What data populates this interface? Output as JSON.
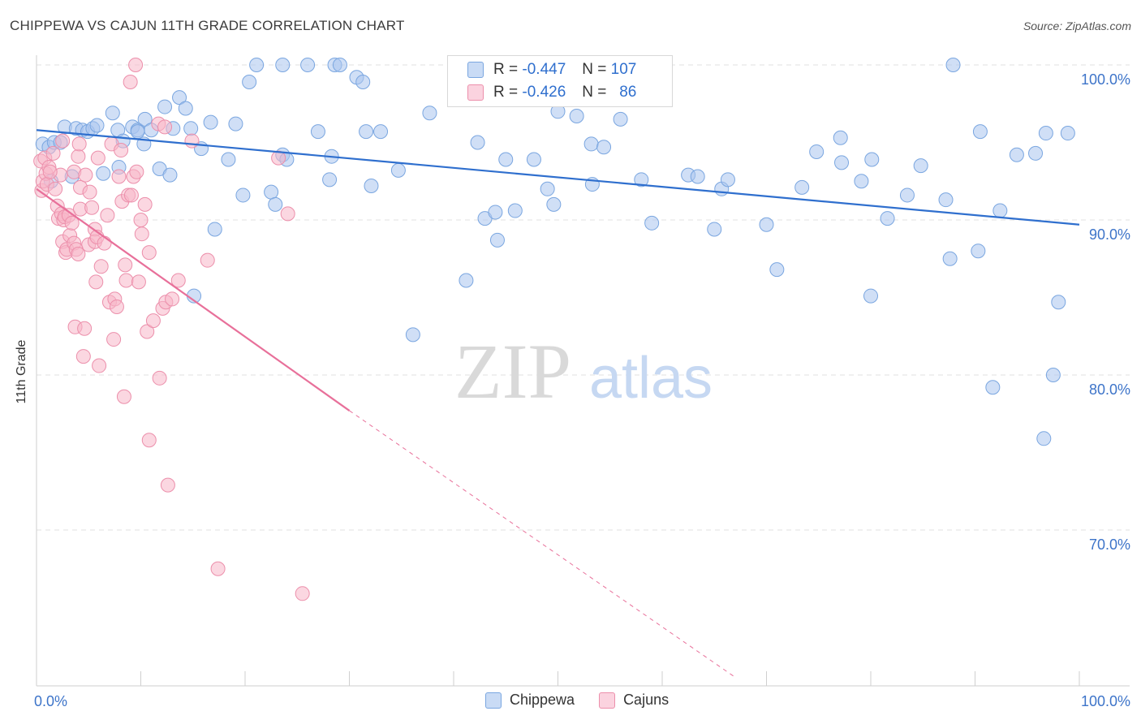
{
  "header": {
    "title": "CHIPPEWA VS CAJUN 11TH GRADE CORRELATION CHART",
    "source": "Source: ZipAtlas.com"
  },
  "legend": {
    "rows": [
      {
        "r_label": "R = ",
        "r_value": "-0.447",
        "n_label": "N = ",
        "n_value": "107",
        "color": "#a9c5ef"
      },
      {
        "r_label": "R = ",
        "r_value": "-0.426",
        "n_label": "N = ",
        "n_value": "86",
        "color": "#f7b6c9"
      }
    ],
    "bottom": [
      {
        "label": "Chippewa",
        "color": "#a9c5ef"
      },
      {
        "label": "Cajuns",
        "color": "#f7b6c9"
      }
    ]
  },
  "watermark": {
    "zip": "ZIP",
    "atlas": "atlas"
  },
  "chart_data": {
    "type": "scatter",
    "title": "CHIPPEWA VS CAJUN 11TH GRADE CORRELATION CHART",
    "xlabel": "",
    "ylabel": "11th Grade",
    "xlim": [
      0,
      100
    ],
    "ylim": [
      60.5,
      101.5
    ],
    "x_tick_labels": [
      "0.0%",
      "100.0%"
    ],
    "y_ticks": [
      70,
      80,
      90,
      100
    ],
    "y_tick_labels": [
      "70.0%",
      "80.0%",
      "90.0%",
      "100.0%"
    ],
    "grid": "horizontal dashed",
    "legend_position": "top-center",
    "series": [
      {
        "name": "Chippewa",
        "color": "#a9c5ef",
        "stroke": "#7aa6e0",
        "trend": {
          "x": [
            0,
            100
          ],
          "y": [
            95.8,
            89.7
          ],
          "color": "#2f6fce"
        },
        "points": [
          [
            0.6,
            94.9
          ],
          [
            1.2,
            94.7
          ],
          [
            1.7,
            95.0
          ],
          [
            2.3,
            95.0
          ],
          [
            2.7,
            96.0
          ],
          [
            3.4,
            92.8
          ],
          [
            3.8,
            95.9
          ],
          [
            4.4,
            95.8
          ],
          [
            4.9,
            95.7
          ],
          [
            5.4,
            95.9
          ],
          [
            5.8,
            96.1
          ],
          [
            6.4,
            93.0
          ],
          [
            7.3,
            96.9
          ],
          [
            7.9,
            93.4
          ],
          [
            7.8,
            95.8
          ],
          [
            8.3,
            95.1
          ],
          [
            9.2,
            96.0
          ],
          [
            9.7,
            95.8
          ],
          [
            10.3,
            94.9
          ],
          [
            10.4,
            96.5
          ],
          [
            11.0,
            95.8
          ],
          [
            11.8,
            93.3
          ],
          [
            12.3,
            97.3
          ],
          [
            12.8,
            92.9
          ],
          [
            13.1,
            95.9
          ],
          [
            13.7,
            97.9
          ],
          [
            14.3,
            97.2
          ],
          [
            14.8,
            95.9
          ],
          [
            15.1,
            85.1
          ],
          [
            15.8,
            94.6
          ],
          [
            16.7,
            96.3
          ],
          [
            17.1,
            89.4
          ],
          [
            18.4,
            93.9
          ],
          [
            19.1,
            96.2
          ],
          [
            19.8,
            91.6
          ],
          [
            20.4,
            98.9
          ],
          [
            21.1,
            100.0
          ],
          [
            22.5,
            91.8
          ],
          [
            22.9,
            91.0
          ],
          [
            23.6,
            94.2
          ],
          [
            23.6,
            100.0
          ],
          [
            24.0,
            93.9
          ],
          [
            26.0,
            100.0
          ],
          [
            27.0,
            95.7
          ],
          [
            28.1,
            92.6
          ],
          [
            28.3,
            94.1
          ],
          [
            28.6,
            100.0
          ],
          [
            29.1,
            100.0
          ],
          [
            30.7,
            99.2
          ],
          [
            31.3,
            98.9
          ],
          [
            31.6,
            95.7
          ],
          [
            32.1,
            92.2
          ],
          [
            33.0,
            95.7
          ],
          [
            34.7,
            93.2
          ],
          [
            36.1,
            82.6
          ],
          [
            37.7,
            96.9
          ],
          [
            41.2,
            86.1
          ],
          [
            42.3,
            95.0
          ],
          [
            43.0,
            90.1
          ],
          [
            44.0,
            90.5
          ],
          [
            44.2,
            88.7
          ],
          [
            45.0,
            93.9
          ],
          [
            45.9,
            90.6
          ],
          [
            47.7,
            93.9
          ],
          [
            49.0,
            92.0
          ],
          [
            49.6,
            91.0
          ],
          [
            50.0,
            97.0
          ],
          [
            51.8,
            96.7
          ],
          [
            53.2,
            94.9
          ],
          [
            53.3,
            92.3
          ],
          [
            54.4,
            94.7
          ],
          [
            56.0,
            96.5
          ],
          [
            58.0,
            92.6
          ],
          [
            59.0,
            89.8
          ],
          [
            62.5,
            92.9
          ],
          [
            63.4,
            92.8
          ],
          [
            65.0,
            89.4
          ],
          [
            65.7,
            92.0
          ],
          [
            66.3,
            92.6
          ],
          [
            70.0,
            89.7
          ],
          [
            71.0,
            86.8
          ],
          [
            73.4,
            92.1
          ],
          [
            74.8,
            94.4
          ],
          [
            77.1,
            95.3
          ],
          [
            77.2,
            93.7
          ],
          [
            79.1,
            92.5
          ],
          [
            80.0,
            85.1
          ],
          [
            80.1,
            93.9
          ],
          [
            81.6,
            90.1
          ],
          [
            83.5,
            91.6
          ],
          [
            84.8,
            93.5
          ],
          [
            87.2,
            91.3
          ],
          [
            87.6,
            87.5
          ],
          [
            87.9,
            100.0
          ],
          [
            90.3,
            88.0
          ],
          [
            90.5,
            95.7
          ],
          [
            91.7,
            79.2
          ],
          [
            92.4,
            90.6
          ],
          [
            94.0,
            94.2
          ],
          [
            95.8,
            94.3
          ],
          [
            96.6,
            75.9
          ],
          [
            96.8,
            95.6
          ],
          [
            97.5,
            80.0
          ],
          [
            98.0,
            84.7
          ],
          [
            98.9,
            95.6
          ],
          [
            1.4,
            92.5
          ],
          [
            9.7,
            95.7
          ]
        ]
      },
      {
        "name": "Cajuns",
        "color": "#f7b6c9",
        "stroke": "#ec8fab",
        "trend": {
          "x": [
            0,
            30.0,
            67.0
          ],
          "y": [
            92.0,
            77.7,
            60.5
          ],
          "color": "#e8709a"
        },
        "points": [
          [
            0.4,
            93.8
          ],
          [
            0.5,
            91.9
          ],
          [
            0.6,
            92.5
          ],
          [
            0.8,
            94.0
          ],
          [
            0.9,
            93.0
          ],
          [
            1.0,
            92.3
          ],
          [
            1.2,
            93.4
          ],
          [
            1.6,
            94.3
          ],
          [
            1.8,
            92.0
          ],
          [
            2.0,
            90.9
          ],
          [
            2.1,
            90.1
          ],
          [
            2.3,
            92.9
          ],
          [
            2.4,
            90.4
          ],
          [
            2.5,
            95.1
          ],
          [
            2.5,
            88.6
          ],
          [
            2.6,
            90.0
          ],
          [
            2.7,
            90.2
          ],
          [
            2.8,
            87.9
          ],
          [
            2.9,
            88.1
          ],
          [
            3.1,
            90.3
          ],
          [
            3.2,
            89.0
          ],
          [
            3.4,
            89.8
          ],
          [
            3.6,
            93.1
          ],
          [
            3.6,
            88.5
          ],
          [
            3.7,
            83.1
          ],
          [
            3.8,
            88.1
          ],
          [
            4.0,
            87.8
          ],
          [
            4.0,
            94.1
          ],
          [
            4.1,
            94.9
          ],
          [
            4.2,
            92.1
          ],
          [
            4.2,
            90.7
          ],
          [
            4.5,
            81.2
          ],
          [
            4.6,
            83.0
          ],
          [
            4.7,
            92.9
          ],
          [
            5.0,
            88.4
          ],
          [
            5.1,
            91.8
          ],
          [
            5.3,
            90.8
          ],
          [
            5.6,
            89.4
          ],
          [
            5.6,
            88.6
          ],
          [
            5.7,
            86.0
          ],
          [
            5.8,
            88.9
          ],
          [
            5.9,
            94.0
          ],
          [
            6.0,
            80.6
          ],
          [
            6.2,
            87.0
          ],
          [
            6.5,
            88.5
          ],
          [
            6.8,
            90.3
          ],
          [
            7.0,
            84.7
          ],
          [
            7.2,
            94.9
          ],
          [
            7.4,
            82.3
          ],
          [
            7.5,
            84.9
          ],
          [
            7.7,
            84.4
          ],
          [
            7.9,
            92.8
          ],
          [
            8.1,
            94.5
          ],
          [
            8.2,
            91.2
          ],
          [
            8.4,
            78.6
          ],
          [
            8.5,
            87.1
          ],
          [
            8.6,
            86.1
          ],
          [
            8.8,
            91.6
          ],
          [
            9.0,
            98.9
          ],
          [
            9.1,
            91.6
          ],
          [
            9.3,
            92.8
          ],
          [
            9.5,
            100.0
          ],
          [
            9.6,
            93.1
          ],
          [
            9.8,
            86.0
          ],
          [
            10.0,
            90.0
          ],
          [
            10.1,
            89.1
          ],
          [
            10.4,
            91.0
          ],
          [
            10.6,
            82.8
          ],
          [
            10.8,
            87.9
          ],
          [
            10.8,
            75.8
          ],
          [
            11.2,
            83.5
          ],
          [
            11.7,
            96.2
          ],
          [
            11.8,
            79.8
          ],
          [
            12.1,
            84.3
          ],
          [
            12.3,
            96.0
          ],
          [
            12.4,
            84.7
          ],
          [
            12.6,
            72.9
          ],
          [
            13.0,
            84.9
          ],
          [
            13.6,
            86.1
          ],
          [
            14.9,
            95.1
          ],
          [
            16.4,
            87.4
          ],
          [
            17.4,
            67.5
          ],
          [
            23.2,
            94.0
          ],
          [
            24.1,
            90.4
          ],
          [
            25.5,
            65.9
          ],
          [
            1.3,
            93.1
          ]
        ]
      }
    ]
  }
}
